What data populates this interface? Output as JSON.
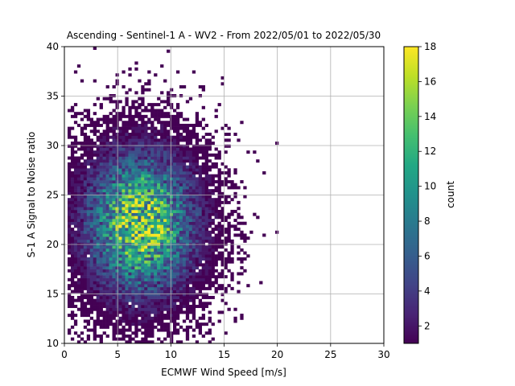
{
  "chart_data": {
    "type": "heatmap",
    "title": "Ascending - Sentinel-1 A - WV2 - From 2022/05/01 to 2022/05/30",
    "xlabel": "ECMWF Wind Speed [m/s]",
    "ylabel": "S-1 A Signal to Noise ratio",
    "xlim": [
      0,
      30
    ],
    "ylim": [
      10,
      40
    ],
    "xticks": [
      0,
      5,
      10,
      15,
      20,
      25,
      30
    ],
    "yticks": [
      10,
      15,
      20,
      25,
      30,
      35,
      40
    ],
    "grid": true,
    "colormap": "viridis",
    "colorbar": {
      "label": "count",
      "min": 1,
      "max": 18,
      "ticks": [
        2,
        4,
        6,
        8,
        10,
        12,
        14,
        16,
        18
      ]
    },
    "bins": {
      "x_width": 0.3,
      "y_width": 0.3
    },
    "density_model": {
      "center_x": 7,
      "center_y": 22,
      "spread_x": 3.2,
      "spread_y": 4.5,
      "peak_count": 18,
      "x_extent": [
        0.3,
        22
      ],
      "y_extent": [
        10,
        39.7
      ]
    }
  }
}
